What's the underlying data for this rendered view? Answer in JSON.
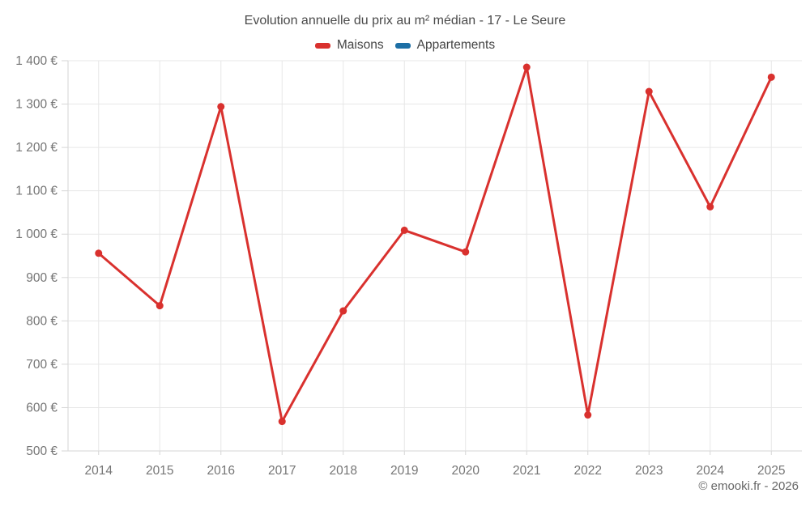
{
  "header": {
    "title": "Evolution annuelle du prix au m² médian - 17 - Le Seure"
  },
  "legend": {
    "items": [
      {
        "label": "Maisons",
        "color": "#d9312e"
      },
      {
        "label": "Appartements",
        "color": "#1d6fa5"
      }
    ]
  },
  "footer": {
    "copyright": "© emooki.fr - 2026"
  },
  "palette": {
    "grid": "#e7e7e7",
    "axis": "#d6d6d6",
    "tick_text": "#757575",
    "title_text": "#4a4a4a",
    "footer_text": "#666666"
  },
  "chart_data": {
    "type": "line",
    "title": "Evolution annuelle du prix au m² médian - 17 - Le Seure",
    "xlabel": "",
    "ylabel": "",
    "categories": [
      "2014",
      "2015",
      "2016",
      "2017",
      "2018",
      "2019",
      "2020",
      "2021",
      "2022",
      "2023",
      "2024",
      "2025"
    ],
    "series": [
      {
        "name": "Maisons",
        "color": "#d9312e",
        "values": [
          956,
          835,
          1294,
          568,
          823,
          1009,
          959,
          1385,
          583,
          1329,
          1063,
          1362
        ]
      },
      {
        "name": "Appartements",
        "color": "#1d6fa5",
        "values": []
      }
    ],
    "ylim": [
      500,
      1400
    ],
    "yticks": [
      500,
      600,
      700,
      800,
      900,
      1000,
      1100,
      1200,
      1300,
      1400
    ],
    "ytick_labels": [
      "500 €",
      "600 €",
      "700 €",
      "800 €",
      "900 €",
      "1 000 €",
      "1 100 €",
      "1 200 €",
      "1 300 €",
      "1 400 €"
    ],
    "grid": true,
    "legend_position": "top",
    "currency_suffix": " €"
  }
}
